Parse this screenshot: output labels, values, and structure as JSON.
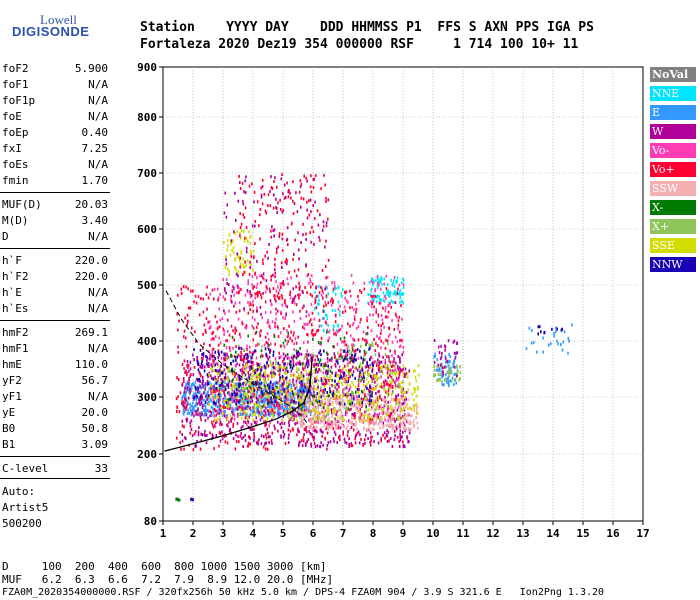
{
  "logo": {
    "top": "Lowell",
    "main": "DIGISONDE"
  },
  "header": {
    "row1": "Station    YYYY DAY    DDD HHMMSS P1  FFS S AXN PPS IGA PS",
    "row2": "Fortaleza 2020 Dez19 354 000000 RSF     1 714 100 10+ 11"
  },
  "params": [
    {
      "name": "foF2",
      "value": "5.900"
    },
    {
      "name": "foF1",
      "value": "N/A"
    },
    {
      "name": "foF1p",
      "value": "N/A"
    },
    {
      "name": "foE",
      "value": "N/A"
    },
    {
      "name": "foEp",
      "value": "0.40"
    },
    {
      "name": "fxI",
      "value": "7.25"
    },
    {
      "name": "foEs",
      "value": "N/A"
    },
    {
      "name": "fmin",
      "value": "1.70"
    },
    {
      "name": "MUF(D)",
      "value": "20.03"
    },
    {
      "name": "M(D)",
      "value": "3.40"
    },
    {
      "name": "D",
      "value": "N/A"
    },
    {
      "name": "h`F",
      "value": "220.0"
    },
    {
      "name": "h`F2",
      "value": "220.0"
    },
    {
      "name": "h`E",
      "value": "N/A"
    },
    {
      "name": "h`Es",
      "value": "N/A"
    },
    {
      "name": "hmF2",
      "value": "269.1"
    },
    {
      "name": "hmF1",
      "value": "N/A"
    },
    {
      "name": "hmE",
      "value": "110.0"
    },
    {
      "name": "yF2",
      "value": "56.7"
    },
    {
      "name": "yF1",
      "value": "N/A"
    },
    {
      "name": "yE",
      "value": "20.0"
    },
    {
      "name": "B0",
      "value": "50.8"
    },
    {
      "name": "B1",
      "value": "3.09"
    },
    {
      "name": "C-level",
      "value": "33"
    }
  ],
  "auto": [
    "Auto:",
    "Artist5",
    "500200"
  ],
  "legend": [
    {
      "label": "NoVal",
      "bg": "#808080",
      "fg": "#ffffff"
    },
    {
      "label": "NNE",
      "bg": "#00e5ff",
      "fg": "#ffffff"
    },
    {
      "label": "E",
      "bg": "#3399ff",
      "fg": "#ffffff"
    },
    {
      "label": "W",
      "bg": "#b0009a",
      "fg": "#ffffff"
    },
    {
      "label": "Vo-",
      "bg": "#ff3cb4",
      "fg": "#ffffff"
    },
    {
      "label": "Vo+",
      "bg": "#ff0033",
      "fg": "#ffffff"
    },
    {
      "label": "SSW",
      "bg": "#f4b0b0",
      "fg": "#ffffff"
    },
    {
      "label": "X-",
      "bg": "#007a00",
      "fg": "#ffffff"
    },
    {
      "label": "X+",
      "bg": "#8fc45a",
      "fg": "#ffffff"
    },
    {
      "label": "SSE",
      "bg": "#d2dc00",
      "fg": "#ffffff"
    },
    {
      "label": "NNW",
      "bg": "#1a00b4",
      "fg": "#ffffff"
    }
  ],
  "footer": {
    "d_row": "D     100  200  400  600  800 1000 1500 3000 [km]",
    "muf_row": "MUF   6.2  6.3  6.6  7.2  7.9  8.9 12.0 20.0 [MHz]",
    "file_row": "FZA0M_2020354000000.RSF / 320fx256h 50 kHz 5.0 km / DPS-4 FZA0M 904 / 3.9 S 321.6 E   Ion2Png 1.3.20"
  },
  "chart_data": {
    "type": "scatter",
    "xlim": [
      1,
      17
    ],
    "ylim": [
      80,
      900
    ],
    "x_ticks": [
      1,
      2,
      3,
      4,
      5,
      6,
      7,
      8,
      9,
      10,
      11,
      12,
      13,
      14,
      15,
      16,
      17
    ],
    "y_ticks": [
      80,
      200,
      300,
      400,
      500,
      600,
      700,
      800,
      900
    ],
    "grid": true,
    "legend_placement": "right",
    "profile_curve": [
      [
        1.05,
        205
      ],
      [
        2.0,
        218
      ],
      [
        3.0,
        232
      ],
      [
        4.0,
        248
      ],
      [
        4.8,
        262
      ],
      [
        5.3,
        275
      ],
      [
        5.7,
        290
      ],
      [
        5.9,
        320
      ],
      [
        5.97,
        370
      ]
    ],
    "dashed_curve": [
      [
        1.1,
        490
      ],
      [
        1.6,
        440
      ],
      [
        2.2,
        395
      ],
      [
        3.0,
        358
      ],
      [
        3.8,
        330
      ],
      [
        4.6,
        305
      ],
      [
        5.2,
        285
      ],
      [
        5.6,
        268
      ],
      [
        5.85,
        252
      ]
    ],
    "clusters": [
      {
        "series": "E",
        "color": "#3399ff",
        "x": [
          1.6,
          6.0
        ],
        "y": [
          270,
          330
        ],
        "n": 700
      },
      {
        "series": "NNE",
        "color": "#00e5ff",
        "x": [
          7.8,
          9.0
        ],
        "y": [
          470,
          520
        ],
        "n": 90
      },
      {
        "series": "NNE",
        "color": "#00e5ff",
        "x": [
          6.0,
          7.0
        ],
        "y": [
          420,
          500
        ],
        "n": 50
      },
      {
        "series": "W",
        "color": "#b0009a",
        "x": [
          1.6,
          9.2
        ],
        "y": [
          215,
          380
        ],
        "n": 900
      },
      {
        "series": "Vo-",
        "color": "#ff3cb4",
        "x": [
          2.5,
          9.0
        ],
        "y": [
          250,
          520
        ],
        "n": 550
      },
      {
        "series": "Vo+",
        "color": "#ff0033",
        "x": [
          1.4,
          9.0
        ],
        "y": [
          210,
          500
        ],
        "n": 650
      },
      {
        "series": "SSW",
        "color": "#f4b0b0",
        "x": [
          5.5,
          9.5
        ],
        "y": [
          245,
          300
        ],
        "n": 350
      },
      {
        "series": "X-",
        "color": "#007a00",
        "x": [
          3.0,
          8.0
        ],
        "y": [
          280,
          420
        ],
        "n": 120
      },
      {
        "series": "X+",
        "color": "#8fc45a",
        "x": [
          3.0,
          9.0
        ],
        "y": [
          260,
          400
        ],
        "n": 200
      },
      {
        "series": "SSE",
        "color": "#d2dc00",
        "x": [
          2.5,
          9.5
        ],
        "y": [
          260,
          360
        ],
        "n": 420
      },
      {
        "series": "SSE",
        "color": "#d2dc00",
        "x": [
          3.0,
          4.0
        ],
        "y": [
          520,
          600
        ],
        "n": 60
      },
      {
        "series": "NNW",
        "color": "#1a00b4",
        "x": [
          2.0,
          8.0
        ],
        "y": [
          290,
          390
        ],
        "n": 250
      },
      {
        "series": "Vo+",
        "color": "#ff0033",
        "x": [
          3.5,
          6.5
        ],
        "y": [
          480,
          700
        ],
        "n": 160
      },
      {
        "series": "W",
        "color": "#b0009a",
        "x": [
          3.0,
          6.5
        ],
        "y": [
          450,
          700
        ],
        "n": 130
      },
      {
        "series": "E",
        "color": "#3399ff",
        "x": [
          10.0,
          10.8
        ],
        "y": [
          320,
          380
        ],
        "n": 60
      },
      {
        "series": "X+",
        "color": "#8fc45a",
        "x": [
          10.0,
          10.9
        ],
        "y": [
          330,
          360
        ],
        "n": 40
      },
      {
        "series": "W",
        "color": "#b0009a",
        "x": [
          10.0,
          10.8
        ],
        "y": [
          340,
          410
        ],
        "n": 30
      },
      {
        "series": "E",
        "color": "#3399ff",
        "x": [
          13.0,
          14.6
        ],
        "y": [
          380,
          440
        ],
        "n": 25
      },
      {
        "series": "NNW",
        "color": "#1a00b4",
        "x": [
          13.4,
          14.3
        ],
        "y": [
          415,
          430
        ],
        "n": 10
      },
      {
        "series": "X-",
        "color": "#007a00",
        "x": [
          1.4,
          1.6
        ],
        "y": [
          120,
          122
        ],
        "n": 5
      },
      {
        "series": "NNW",
        "color": "#1a00b4",
        "x": [
          1.9,
          2.1
        ],
        "y": [
          120,
          122
        ],
        "n": 3
      }
    ]
  }
}
